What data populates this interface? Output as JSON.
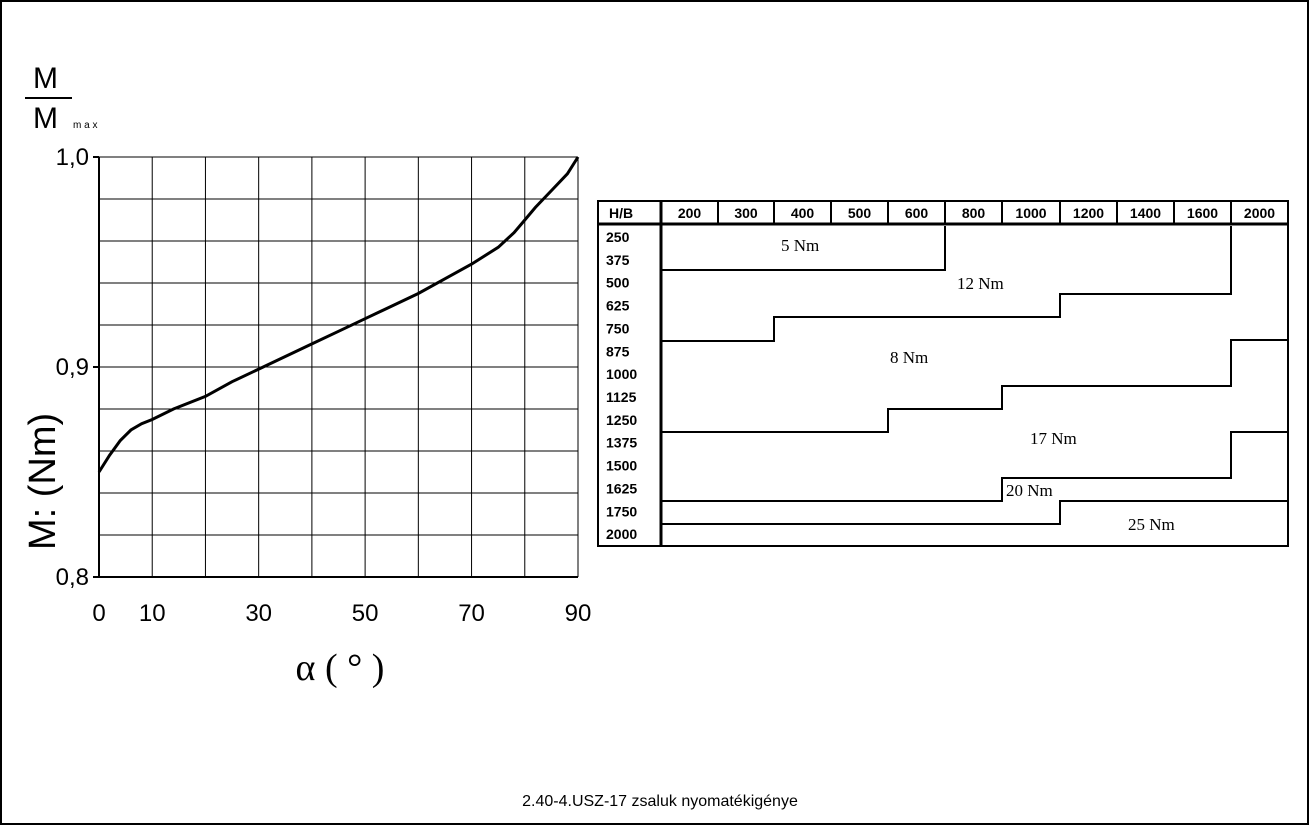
{
  "caption": "2.40-4.USZ-17  zsaluk  nyomatékigénye",
  "chart_data": {
    "type": "line",
    "ylabel_fraction_top": "M",
    "ylabel_fraction_bottom": "M",
    "ylabel_fraction_sub": "m a x",
    "ylabel": "M: (Nm)",
    "xlabel": "α ( ° )",
    "xlim": [
      0,
      90
    ],
    "ylim": [
      0.8,
      1.0
    ],
    "x_ticks": [
      "0",
      "10",
      "30",
      "50",
      "70",
      "90"
    ],
    "x_tick_values": [
      0,
      10,
      30,
      50,
      70,
      90
    ],
    "y_ticks": [
      "0,8",
      "0,9",
      "1,0"
    ],
    "y_tick_values": [
      0.8,
      0.9,
      1.0
    ],
    "grid": true,
    "x_grid_step": 10,
    "y_grid_step": 0.02,
    "series": [
      {
        "x": [
          0,
          2,
          4,
          6,
          8,
          10,
          14,
          20,
          25,
          30,
          35,
          40,
          45,
          50,
          55,
          60,
          65,
          70,
          75,
          78,
          80,
          82,
          85,
          88,
          90
        ],
        "y": [
          0.85,
          0.858,
          0.865,
          0.87,
          0.873,
          0.875,
          0.88,
          0.886,
          0.893,
          0.899,
          0.905,
          0.911,
          0.917,
          0.923,
          0.929,
          0.935,
          0.942,
          0.949,
          0.957,
          0.964,
          0.97,
          0.976,
          0.984,
          0.992,
          1.0
        ]
      }
    ]
  },
  "torque_table": {
    "corner_label": "H/B",
    "columns": [
      "200",
      "300",
      "400",
      "500",
      "600",
      "800",
      "1000",
      "1200",
      "1400",
      "1600",
      "2000"
    ],
    "rows": [
      "250",
      "375",
      "500",
      "625",
      "750",
      "875",
      "1000",
      "1125",
      "1250",
      "1375",
      "1500",
      "1625",
      "1750",
      "2000"
    ],
    "zones": [
      {
        "label": "5 Nm"
      },
      {
        "label": "12 Nm"
      },
      {
        "label": "8 Nm"
      },
      {
        "label": "17 Nm"
      },
      {
        "label": "20 Nm"
      },
      {
        "label": "25 Nm"
      }
    ]
  }
}
